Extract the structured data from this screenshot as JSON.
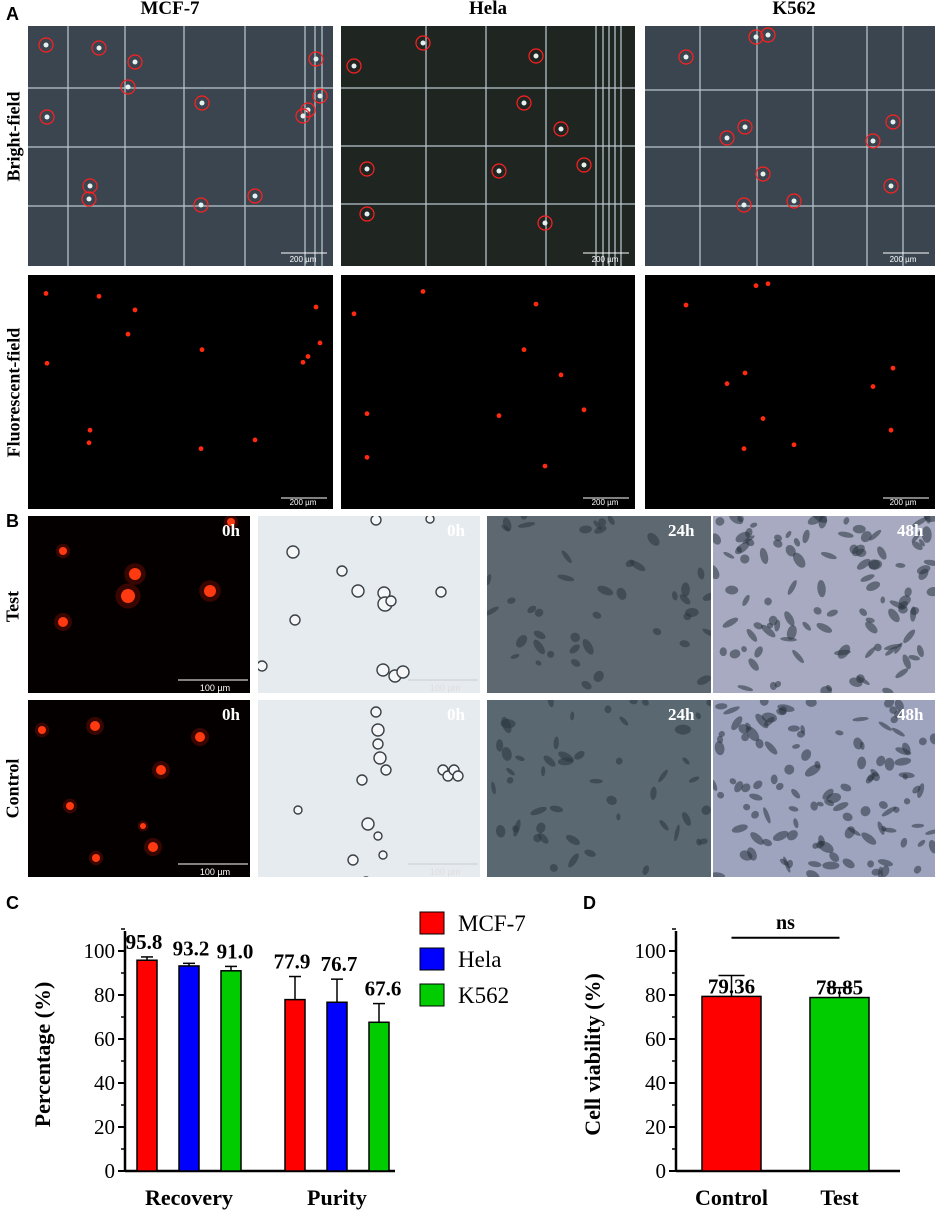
{
  "panel_a": {
    "letter": "A",
    "columns": [
      "MCF-7",
      "Hela",
      "K562"
    ],
    "row_labels": [
      "Bright-field",
      "Fluorescent-field"
    ],
    "scale_text": "200 µm"
  },
  "panel_b": {
    "letter": "B",
    "row_labels": [
      "Test",
      "Control"
    ],
    "time_labels": [
      "0h",
      "0h",
      "24h",
      "48h"
    ],
    "scale_text": "100 µm"
  },
  "chart_data": [
    {
      "panel": "C",
      "type": "bar",
      "ylabel": "Percentage (%)",
      "ylim": [
        0,
        115
      ],
      "yticks": [
        0,
        20,
        40,
        60,
        80,
        100
      ],
      "categories": [
        "Recovery",
        "Purity"
      ],
      "series": [
        {
          "name": "MCF-7",
          "color": "#ff0000",
          "values": [
            95.8,
            77.9
          ],
          "errors": [
            1.5,
            10.5
          ]
        },
        {
          "name": "Hela",
          "color": "#0000ff",
          "values": [
            93.2,
            76.7
          ],
          "errors": [
            1.2,
            10.5
          ]
        },
        {
          "name": "K562",
          "color": "#00cc00",
          "values": [
            91.0,
            67.6
          ],
          "errors": [
            2.0,
            8.5
          ]
        }
      ],
      "data_labels": [
        [
          "95.8",
          "77.9"
        ],
        [
          "93.2",
          "76.7"
        ],
        [
          "91.0",
          "67.6"
        ]
      ],
      "legend_placement": "top-right"
    },
    {
      "panel": "D",
      "type": "bar",
      "ylabel": "Cell viability (%)",
      "ylim": [
        0,
        115
      ],
      "yticks": [
        0,
        20,
        40,
        60,
        80,
        100
      ],
      "categories": [
        "Control",
        "Test"
      ],
      "values": [
        79.36,
        78.85
      ],
      "errors": [
        9.5,
        4.5
      ],
      "colors": [
        "#ff0000",
        "#00cc00"
      ],
      "data_labels": [
        "79.36",
        "78.85"
      ],
      "significance": "ns"
    }
  ]
}
